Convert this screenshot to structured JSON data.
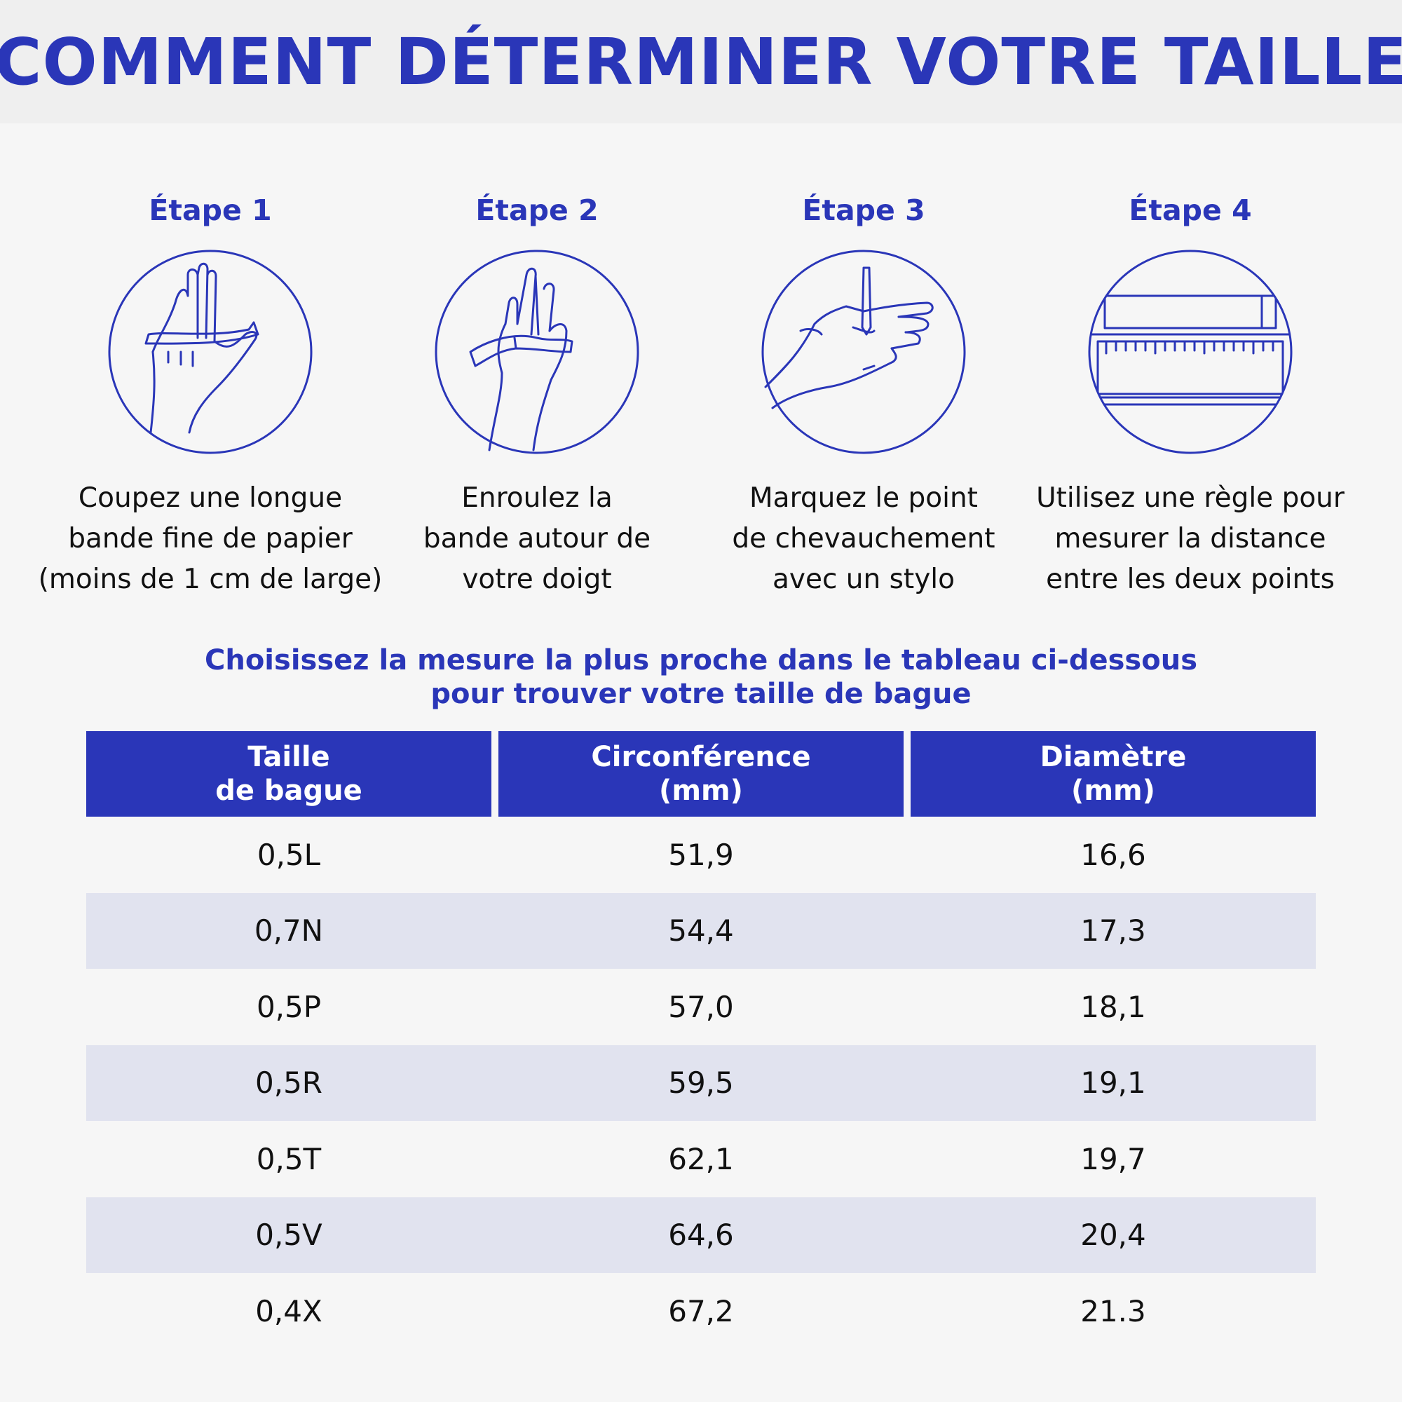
{
  "header": {
    "title": "COMMENT DÉTERMINER VOTRE TAILLE"
  },
  "steps": [
    {
      "title": "Étape 1",
      "icon": "hand-paper-strip-icon",
      "description": "Coupez une longue\nbande fine de papier\n(moins de 1 cm de large)"
    },
    {
      "title": "Étape 2",
      "icon": "hand-wrap-finger-icon",
      "description": "Enroulez la\nbande autour de\nvotre doigt"
    },
    {
      "title": "Étape 3",
      "icon": "hand-pen-mark-icon",
      "description": "Marquez le point\nde chevauchement\navec un stylo"
    },
    {
      "title": "Étape 4",
      "icon": "ruler-icon",
      "description": "Utilisez une règle pour\nmesurer la distance\nentre les deux points"
    }
  ],
  "instruction": "Choisissez la mesure la plus proche dans le tableau ci-dessous\npour trouver votre taille de bague",
  "table": {
    "headers": [
      "Taille\nde bague",
      "Circonférence\n(mm)",
      "Diamètre\n(mm)"
    ],
    "rows": [
      [
        "0,5L",
        "51,9",
        "16,6"
      ],
      [
        "0,7N",
        "54,4",
        "17,3"
      ],
      [
        "0,5P",
        "57,0",
        "18,1"
      ],
      [
        "0,5R",
        "59,5",
        "19,1"
      ],
      [
        "0,5T",
        "62,1",
        "19,7"
      ],
      [
        "0,5V",
        "64,6",
        "20,4"
      ],
      [
        "0,4X",
        "67,2",
        "21.3"
      ]
    ]
  },
  "colors": {
    "accent": "#2a36b8",
    "row_alt": "#e1e3ef",
    "background": "#f6f6f6"
  }
}
